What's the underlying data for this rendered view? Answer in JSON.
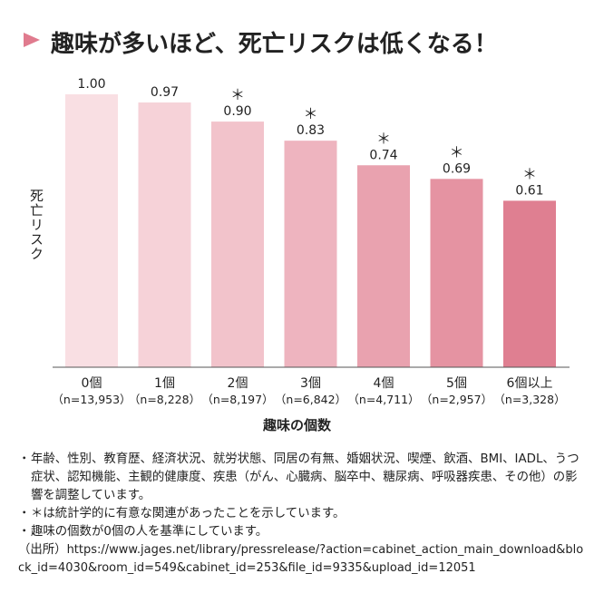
{
  "title": "趣味が多いほど、死亡リスクは低くなる！",
  "chart_data": {
    "type": "bar",
    "categories": [
      "0個",
      "1個",
      "2個",
      "3個",
      "4個",
      "5個",
      "6個以上"
    ],
    "counts": [
      "（n=13,953）",
      "（n=8,228）",
      "（n=8,197）",
      "（n=6,842）",
      "（n=4,711）",
      "（n=2,957）",
      "（n=3,328）"
    ],
    "values": [
      1.0,
      0.97,
      0.9,
      0.83,
      0.74,
      0.69,
      0.61
    ],
    "value_labels": [
      "1.00",
      "0.97",
      "0.90",
      "0.83",
      "0.74",
      "0.69",
      "0.61"
    ],
    "significant": [
      false,
      false,
      true,
      true,
      true,
      true,
      true
    ],
    "significance_mark": "＊",
    "ylabel": "死亡リスク",
    "xlabel": "趣味の個数",
    "ylim": [
      0,
      1.0
    ],
    "grid": false,
    "colors": [
      "#f9dfe3",
      "#f6d2d8",
      "#f2c3cb",
      "#eeb4bf",
      "#e9a2af",
      "#e593a2",
      "#df7f91"
    ]
  },
  "notes": [
    "年齢、性別、教育歴、経済状況、就労状態、同居の有無、婚姻状況、喫煙、飲酒、BMI、IADL、うつ症状、認知機能、主観的健康度、疾患（がん、心臓病、脳卒中、糖尿病、呼吸器疾患、その他）の影響を調整しています。",
    "＊は統計学的に有意な関連があったことを示しています。",
    "趣味の個数が0個の人を基準にしています。"
  ],
  "note_bullet": "・",
  "source_label": "（出所）",
  "source_url": "https://www.jages.net/library/pressrelease/?action=cabinet_action_main_download&block_id=4030&room_id=549&cabinet_id=253&file_id=9335&upload_id=12051"
}
